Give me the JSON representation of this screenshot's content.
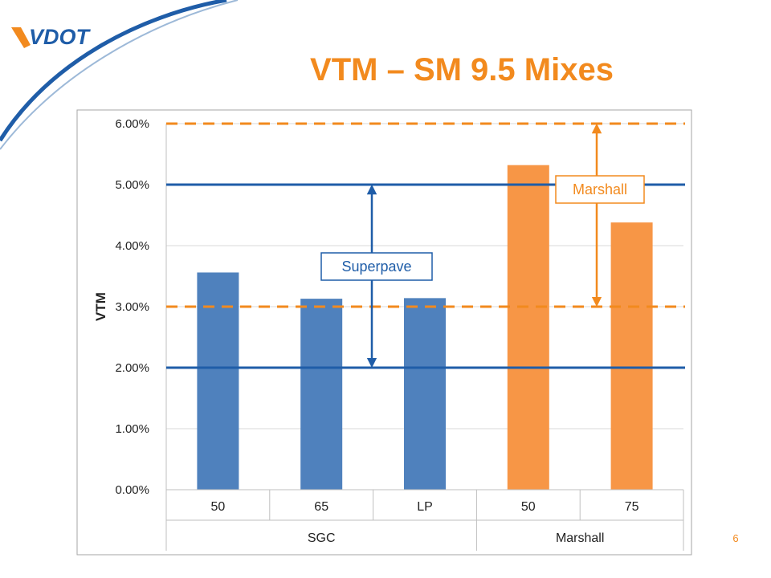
{
  "slide": {
    "logo_text": "VDOT",
    "title": "VTM – SM 9.5 Mixes",
    "page_number": "6"
  },
  "colors": {
    "accent_orange": "#f28a1e",
    "brand_blue": "#1f5da8",
    "bar_blue": "#4f81bd",
    "bar_orange": "#f79646",
    "limit_blue": "#1f5da8",
    "limit_orange": "#f28a1e"
  },
  "chart_data": {
    "type": "bar",
    "ylabel": "VTM",
    "ylim": [
      0,
      0.06
    ],
    "yticks": [
      "0.00%",
      "1.00%",
      "2.00%",
      "3.00%",
      "4.00%",
      "5.00%",
      "6.00%"
    ],
    "categories": [
      "50",
      "65",
      "LP",
      "50",
      "75"
    ],
    "groups": [
      {
        "label": "SGC",
        "categories": [
          "50",
          "65",
          "LP"
        ]
      },
      {
        "label": "Marshall",
        "categories": [
          "50",
          "75"
        ]
      }
    ],
    "values": [
      0.0356,
      0.0313,
      0.0314,
      0.0532,
      0.0438
    ],
    "bar_colors": [
      "#4f81bd",
      "#4f81bd",
      "#4f81bd",
      "#f79646",
      "#f79646"
    ],
    "grid": true,
    "reference_lines": [
      {
        "value": 0.05,
        "style": "solid",
        "color": "#1f5da8"
      },
      {
        "value": 0.02,
        "style": "solid",
        "color": "#1f5da8"
      },
      {
        "value": 0.06,
        "style": "dashed",
        "color": "#f28a1e"
      },
      {
        "value": 0.03,
        "style": "dashed",
        "color": "#f28a1e"
      }
    ],
    "annotations": [
      {
        "text": "Superpave",
        "range": [
          0.02,
          0.05
        ],
        "color": "#1f5da8"
      },
      {
        "text": "Marshall",
        "range": [
          0.03,
          0.06
        ],
        "color": "#f28a1e"
      }
    ]
  }
}
